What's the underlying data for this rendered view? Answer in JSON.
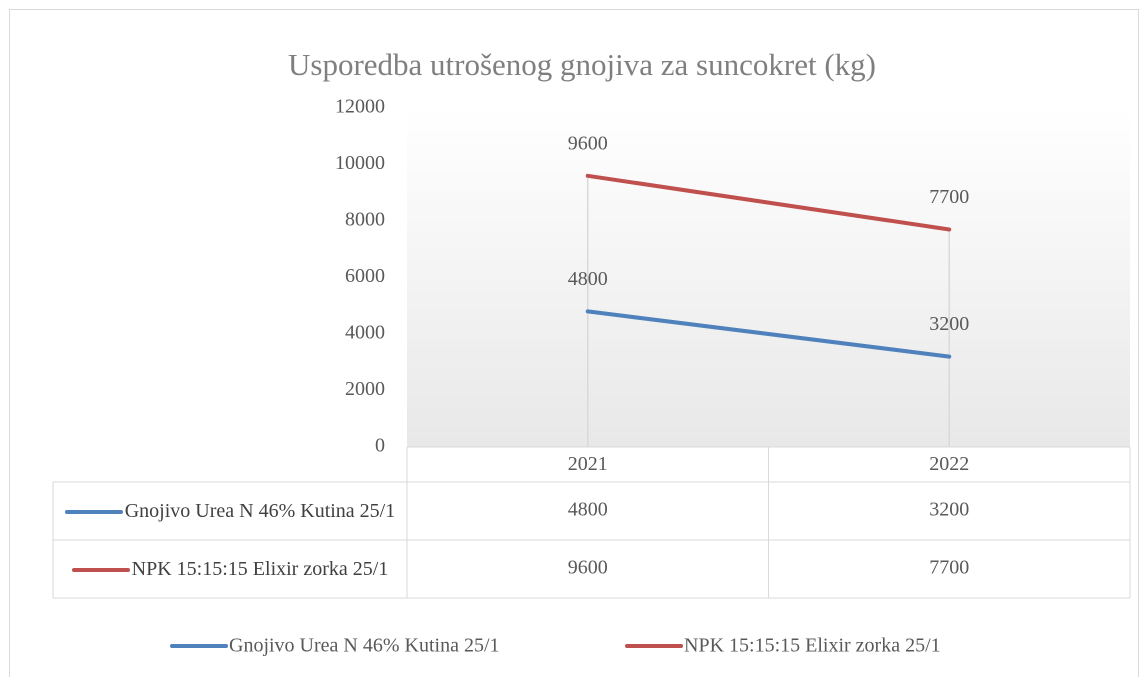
{
  "chart_data": {
    "type": "line",
    "title": "Usporedba utrošenog gnojiva za suncokret (kg)",
    "categories": [
      "2021",
      "2022"
    ],
    "series": [
      {
        "name": "Gnojivo Urea N 46% Kutina 25/1",
        "color": "#4f81bd",
        "values": [
          4800,
          3200
        ]
      },
      {
        "name": "NPK 15:15:15 Elixir zorka 25/1",
        "color": "#c0504d",
        "values": [
          9600,
          7700
        ]
      }
    ],
    "ylim": [
      0,
      12000
    ],
    "yticks": [
      0,
      2000,
      4000,
      6000,
      8000,
      10000,
      12000
    ],
    "data_labels": true,
    "data_table": true,
    "legend": "bottom"
  }
}
